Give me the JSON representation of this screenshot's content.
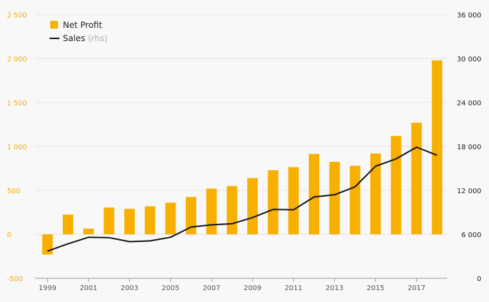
{
  "colors": {
    "bar": "#f7b000",
    "line": "#111111",
    "grid": "#e3e3e3",
    "left_axis_labels": "#f2b000",
    "background": "#f8f8f9"
  },
  "legend": {
    "items": [
      {
        "label": "Net Profit",
        "suffix": "",
        "marker": "square"
      },
      {
        "label": "Sales",
        "suffix": "(rhs)",
        "marker": "line"
      }
    ],
    "placement": "top-left"
  },
  "chart_data": {
    "type": "bar",
    "grid": true,
    "x": [
      1999,
      2000,
      2001,
      2002,
      2003,
      2004,
      2005,
      2006,
      2007,
      2008,
      2009,
      2010,
      2011,
      2012,
      2013,
      2014,
      2015,
      2016,
      2017,
      2018
    ],
    "x_tick_labels": [
      "1999",
      "2001",
      "2003",
      "2005",
      "2007",
      "2009",
      "2011",
      "2013",
      "2015",
      "2017"
    ],
    "x_tick_values": [
      1999,
      2001,
      2003,
      2005,
      2007,
      2009,
      2011,
      2013,
      2015,
      2017
    ],
    "left_axis": {
      "ylim": [
        -500,
        2500
      ],
      "ticks": [
        -500,
        0,
        500,
        1000,
        1500,
        2000,
        2500
      ],
      "tick_labels": [
        "-500",
        "0",
        "500",
        "1 000",
        "1 500",
        "2 000",
        "2 500"
      ]
    },
    "right_axis": {
      "ylim": [
        0,
        36000
      ],
      "ticks": [
        0,
        6000,
        12000,
        18000,
        24000,
        30000,
        36000
      ],
      "tick_labels": [
        "0",
        "6 000",
        "12 000",
        "18 000",
        "24 000",
        "30 000",
        "36 000"
      ]
    },
    "series": [
      {
        "name": "Net Profit",
        "type": "bar",
        "axis": "left",
        "values": [
          -230,
          225,
          65,
          305,
          290,
          320,
          360,
          425,
          520,
          550,
          640,
          730,
          765,
          915,
          825,
          780,
          920,
          1120,
          1270,
          1980
        ]
      },
      {
        "name": "Sales",
        "type": "line",
        "axis": "right",
        "values": [
          3700,
          4700,
          5600,
          5550,
          5000,
          5100,
          5600,
          7000,
          7300,
          7450,
          8300,
          9400,
          9350,
          11100,
          11400,
          12500,
          15300,
          16300,
          17900,
          16800
        ]
      }
    ]
  }
}
